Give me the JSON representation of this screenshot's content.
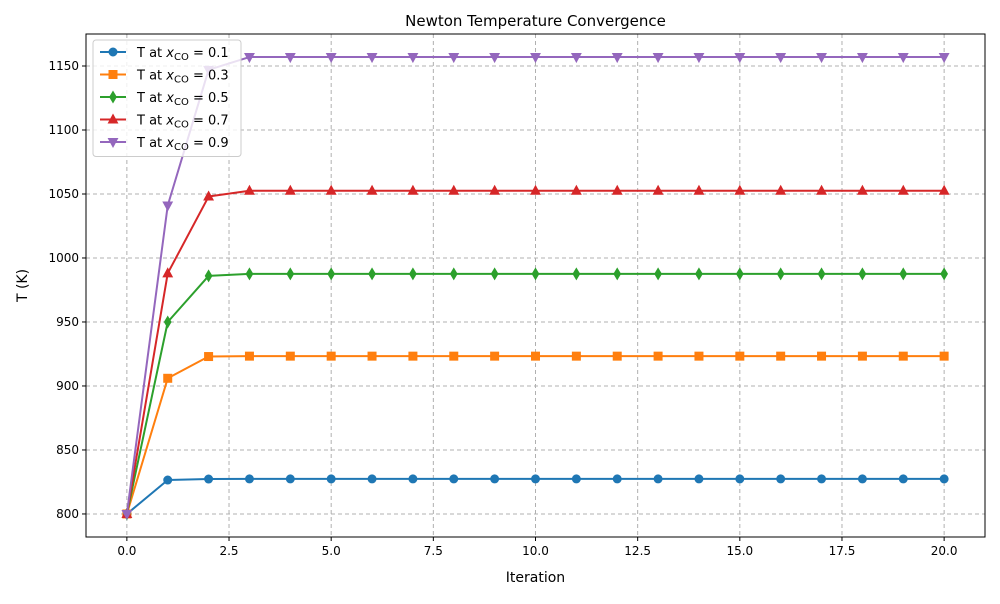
{
  "chart_data": {
    "type": "line",
    "title": "Newton Temperature Convergence",
    "xlabel": "Iteration",
    "ylabel": "T (K)",
    "xlim": [
      -1,
      21
    ],
    "ylim": [
      782,
      1175
    ],
    "xticks": [
      0.0,
      2.5,
      5.0,
      7.5,
      10.0,
      12.5,
      15.0,
      17.5,
      20.0
    ],
    "xtick_labels": [
      "0.0",
      "2.5",
      "5.0",
      "7.5",
      "10.0",
      "12.5",
      "15.0",
      "17.5",
      "20.0"
    ],
    "yticks": [
      800,
      850,
      900,
      950,
      1000,
      1050,
      1100,
      1150
    ],
    "ytick_labels": [
      "800",
      "850",
      "900",
      "950",
      "1000",
      "1050",
      "1100",
      "1150"
    ],
    "grid": true,
    "grid_style": "dashed",
    "legend_position": "upper-left",
    "x": [
      0,
      1,
      2,
      3,
      4,
      5,
      6,
      7,
      8,
      9,
      10,
      11,
      12,
      13,
      14,
      15,
      16,
      17,
      18,
      19,
      20
    ],
    "series": [
      {
        "name": "T at x_CO = 0.1",
        "label_prefix": "T at ",
        "label_var": "x",
        "label_sub": "CO",
        "label_suffix": " = 0.1",
        "color": "#1f77b4",
        "marker": "circle",
        "values": [
          800,
          826.5,
          827.3,
          827.4,
          827.4,
          827.4,
          827.4,
          827.4,
          827.4,
          827.4,
          827.4,
          827.4,
          827.4,
          827.4,
          827.4,
          827.4,
          827.4,
          827.4,
          827.4,
          827.4,
          827.4
        ]
      },
      {
        "name": "T at x_CO = 0.3",
        "label_prefix": "T at ",
        "label_var": "x",
        "label_sub": "CO",
        "label_suffix": " = 0.3",
        "color": "#ff7f0e",
        "marker": "square",
        "values": [
          800,
          906,
          923,
          923.3,
          923.3,
          923.3,
          923.3,
          923.3,
          923.3,
          923.3,
          923.3,
          923.3,
          923.3,
          923.3,
          923.3,
          923.3,
          923.3,
          923.3,
          923.3,
          923.3,
          923.3
        ]
      },
      {
        "name": "T at x_CO = 0.5",
        "label_prefix": "T at ",
        "label_var": "x",
        "label_sub": "CO",
        "label_suffix": " = 0.5",
        "color": "#2ca02c",
        "marker": "thin_diamond",
        "values": [
          800,
          950,
          986,
          987.6,
          987.6,
          987.6,
          987.6,
          987.6,
          987.6,
          987.6,
          987.6,
          987.6,
          987.6,
          987.6,
          987.6,
          987.6,
          987.6,
          987.6,
          987.6,
          987.6,
          987.6
        ]
      },
      {
        "name": "T at x_CO = 0.7",
        "label_prefix": "T at ",
        "label_var": "x",
        "label_sub": "CO",
        "label_suffix": " = 0.7",
        "color": "#d62728",
        "marker": "triangle_up",
        "values": [
          800,
          988,
          1048,
          1052.5,
          1052.5,
          1052.5,
          1052.5,
          1052.5,
          1052.5,
          1052.5,
          1052.5,
          1052.5,
          1052.5,
          1052.5,
          1052.5,
          1052.5,
          1052.5,
          1052.5,
          1052.5,
          1052.5,
          1052.5
        ]
      },
      {
        "name": "T at x_CO = 0.9",
        "label_prefix": "T at ",
        "label_var": "x",
        "label_sub": "CO",
        "label_suffix": " = 0.9",
        "color": "#9467bd",
        "marker": "triangle_down",
        "values": [
          800,
          1041,
          1147,
          1157,
          1157,
          1157,
          1157,
          1157,
          1157,
          1157,
          1157,
          1157,
          1157,
          1157,
          1157,
          1157,
          1157,
          1157,
          1157,
          1157,
          1157
        ]
      }
    ]
  }
}
